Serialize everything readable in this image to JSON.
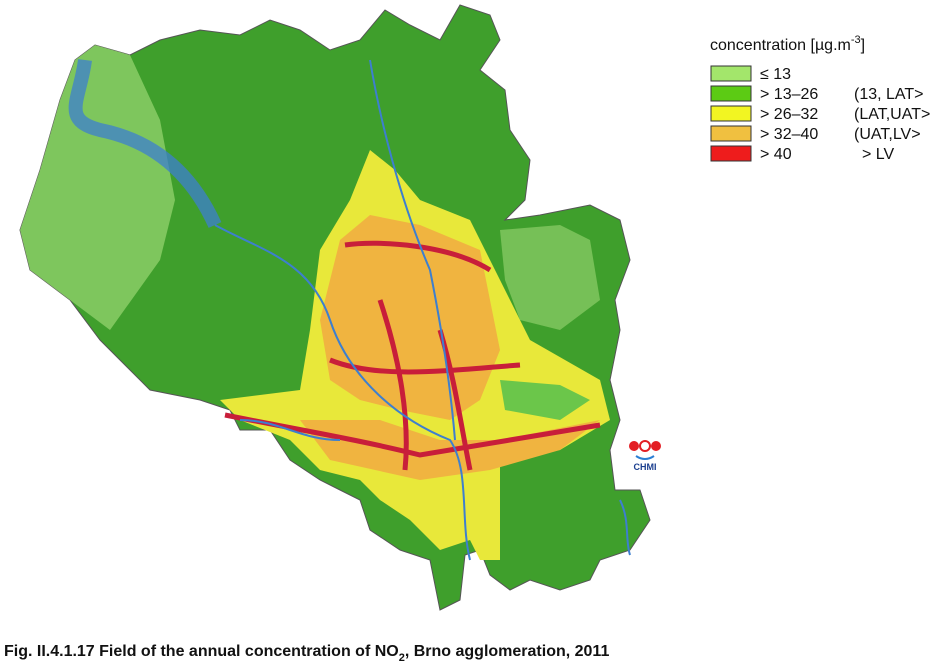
{
  "legend": {
    "title": {
      "main": "concentration [µg.m",
      "sup": "-3",
      "end": "]"
    },
    "items": [
      {
        "label": "≤ 13",
        "note": "",
        "color": "#a3e66b"
      },
      {
        "label": "> 13–26",
        "note": "(13, LAT>",
        "color": "#5ccb14"
      },
      {
        "label": "> 26–32",
        "note": "(LAT,UAT>",
        "color": "#f2f522"
      },
      {
        "label": "> 32–40",
        "note": "(UAT,LV>",
        "color": "#f0c040"
      },
      {
        "label": "> 40",
        "note": "> LV",
        "color": "#ee1c1c"
      }
    ]
  },
  "logo": {
    "text": "CHMI"
  },
  "caption": {
    "main": "Fig. II.4.1.17  Field of the annual concentration of NO",
    "sub": "2",
    "end": ", Brno agglomeration, 2011"
  }
}
